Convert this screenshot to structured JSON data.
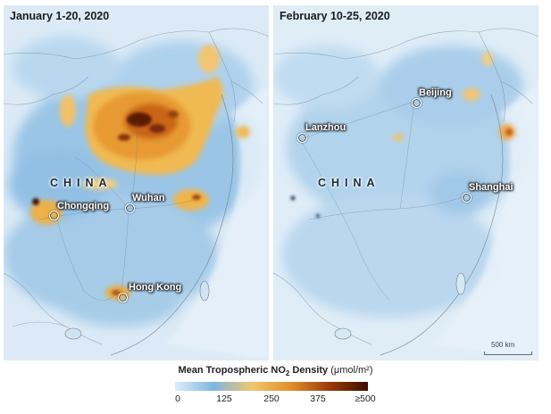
{
  "panels": {
    "left": {
      "title": "January 1-20, 2020",
      "country_label": "CHINA",
      "cities": {
        "chongqing": "Chongqing",
        "wuhan": "Wuhan",
        "hong_kong": "Hong Kong"
      }
    },
    "right": {
      "title": "February 10-25, 2020",
      "country_label": "CHINA",
      "cities": {
        "beijing": "Beijing",
        "lanzhou": "Lanzhou",
        "shanghai": "Shanghai"
      },
      "scale_label": "500 km"
    }
  },
  "legend": {
    "title_main": "Mean Tropospheric NO",
    "title_sub": "2",
    "title_rest": " Density",
    "title_unit": "(μmol/m²)",
    "ticks": [
      "0",
      "125",
      "250",
      "375",
      "≥500"
    ],
    "gradient_colors": [
      "#ddeefa",
      "#7fb5e0",
      "#f1c66e",
      "#e0902a",
      "#9a3b0a",
      "#3d0d04"
    ]
  },
  "colors": {
    "background_blue": "#d3e7f5",
    "haze_blue": "#8dbde3",
    "hotspot_yellow": "#efb54a",
    "hotspot_orange": "#d9791c",
    "hotspot_dark": "#5a1b06"
  }
}
